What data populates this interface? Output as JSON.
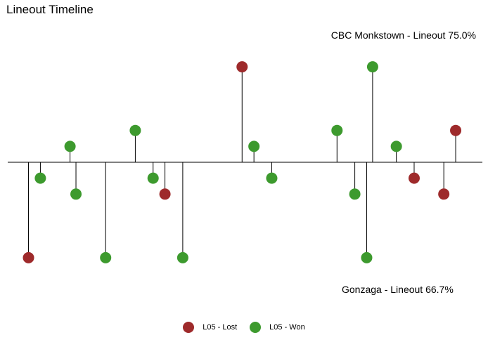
{
  "chart_data": {
    "type": "scatter",
    "title": "Lineout Timeline",
    "annotations": {
      "top": "CBC Monkstown - Lineout 75.0%",
      "bottom": "Gonzaga - Lineout 66.7%"
    },
    "xlabel": "",
    "ylabel": "",
    "grid": false,
    "legend": {
      "placement": "bottom",
      "entries": [
        {
          "label": "L05 - Lost",
          "color": "#9e2a2b"
        },
        {
          "label": "L05 - Won",
          "color": "#3d9a2e"
        }
      ]
    },
    "x_range": [
      0,
      80
    ],
    "y_range": [
      -3,
      3
    ],
    "points": [
      {
        "x": 3.5,
        "y": -3,
        "outcome": "L05 - Lost"
      },
      {
        "x": 5.5,
        "y": -0.5,
        "outcome": "L05 - Won"
      },
      {
        "x": 10.5,
        "y": 0.5,
        "outcome": "L05 - Won"
      },
      {
        "x": 11.5,
        "y": -1,
        "outcome": "L05 - Won"
      },
      {
        "x": 16.5,
        "y": -3,
        "outcome": "L05 - Won"
      },
      {
        "x": 21.5,
        "y": 1,
        "outcome": "L05 - Won"
      },
      {
        "x": 24.5,
        "y": -0.5,
        "outcome": "L05 - Won"
      },
      {
        "x": 26.5,
        "y": -1,
        "outcome": "L05 - Lost"
      },
      {
        "x": 29.5,
        "y": -3,
        "outcome": "L05 - Won"
      },
      {
        "x": 39.5,
        "y": 3,
        "outcome": "L05 - Lost"
      },
      {
        "x": 41.5,
        "y": 0.5,
        "outcome": "L05 - Won"
      },
      {
        "x": 44.5,
        "y": -0.5,
        "outcome": "L05 - Won"
      },
      {
        "x": 55.5,
        "y": 1,
        "outcome": "L05 - Won"
      },
      {
        "x": 58.5,
        "y": -1,
        "outcome": "L05 - Won"
      },
      {
        "x": 60.5,
        "y": -3,
        "outcome": "L05 - Won"
      },
      {
        "x": 61.5,
        "y": 3,
        "outcome": "L05 - Won"
      },
      {
        "x": 65.5,
        "y": 0.5,
        "outcome": "L05 - Won"
      },
      {
        "x": 68.5,
        "y": -0.5,
        "outcome": "L05 - Lost"
      },
      {
        "x": 73.5,
        "y": -1,
        "outcome": "L05 - Lost"
      },
      {
        "x": 75.5,
        "y": 1,
        "outcome": "L05 - Lost"
      }
    ]
  }
}
